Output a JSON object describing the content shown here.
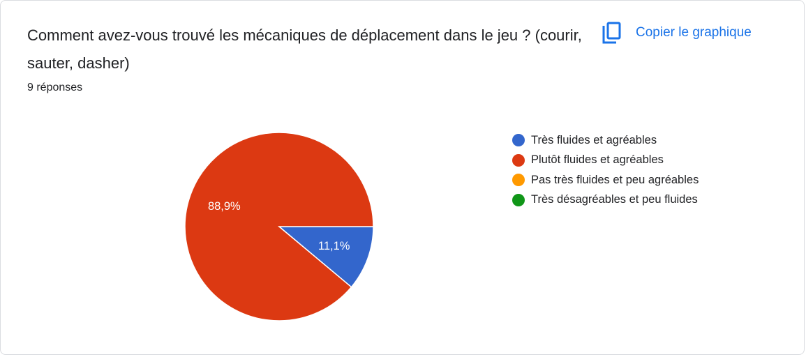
{
  "header": {
    "question": "Comment avez-vous trouvé les mécaniques de déplacement dans le jeu ? (courir, sauter, dasher)",
    "response_count": "9 réponses",
    "copy_label": "Copier le graphique",
    "copy_icon": "copy-icon",
    "accent": "#1a73e8"
  },
  "chart_data": {
    "type": "pie",
    "title": "Comment avez-vous trouvé les mécaniques de déplacement dans le jeu ? (courir, sauter, dasher)",
    "total_responses": 9,
    "slices": [
      {
        "label": "Très fluides et agréables",
        "value": 11.1,
        "count": 1,
        "color": "#3366cc",
        "data_label": "11,1%"
      },
      {
        "label": "Plutôt fluides et agréables",
        "value": 88.9,
        "count": 8,
        "color": "#dc3912",
        "data_label": "88,9%"
      },
      {
        "label": "Pas très fluides et peu agréables",
        "value": 0,
        "count": 0,
        "color": "#ff9900",
        "data_label": ""
      },
      {
        "label": "Très désagréables et peu fluides",
        "value": 0,
        "count": 0,
        "color": "#109618",
        "data_label": ""
      }
    ],
    "legend_position": "right"
  }
}
